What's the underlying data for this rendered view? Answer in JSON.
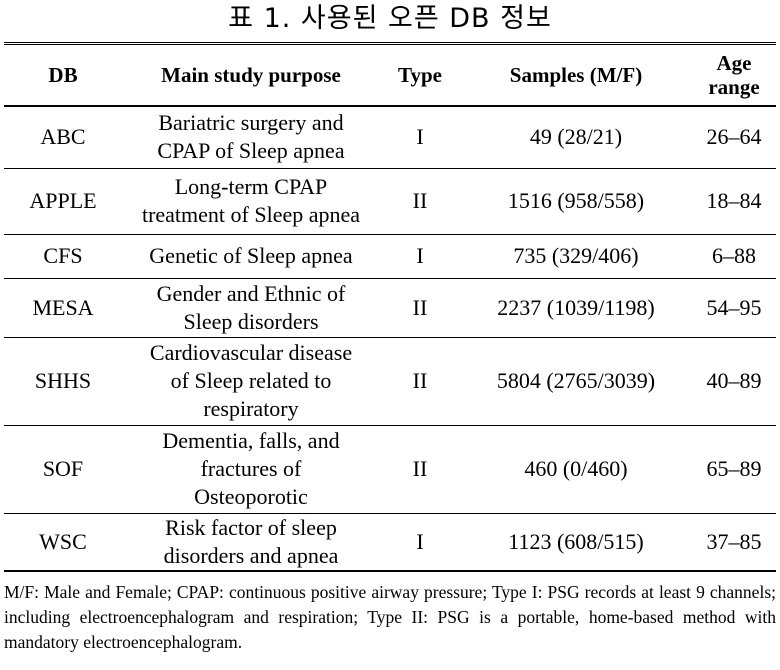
{
  "title": "표 1. 사용된 오픈 DB 정보",
  "table": {
    "headers": {
      "db": "DB",
      "purpose": "Main study purpose",
      "type": "Type",
      "samples": "Samples (M/F)",
      "age_line1": "Age",
      "age_line2": "range"
    },
    "rows": [
      {
        "db": "ABC",
        "purpose": [
          "Bariatric surgery and",
          "CPAP of Sleep apnea"
        ],
        "type": "I",
        "samples": "49 (28/21)",
        "age": "26–64"
      },
      {
        "db": "APPLE",
        "purpose": [
          "Long-term CPAP",
          "treatment of Sleep apnea"
        ],
        "type": "II",
        "samples": "1516 (958/558)",
        "age": "18–84"
      },
      {
        "db": "CFS",
        "purpose": [
          "Genetic of Sleep apnea"
        ],
        "type": "I",
        "samples": "735 (329/406)",
        "age": "6–88"
      },
      {
        "db": "MESA",
        "purpose": [
          "Gender and Ethnic of",
          "Sleep disorders"
        ],
        "type": "II",
        "samples": "2237 (1039/1198)",
        "age": "54–95"
      },
      {
        "db": "SHHS",
        "purpose": [
          "Cardiovascular disease",
          "of Sleep related to",
          "respiratory"
        ],
        "type": "II",
        "samples": "5804 (2765/3039)",
        "age": "40–89"
      },
      {
        "db": "SOF",
        "purpose": [
          "Dementia, falls, and",
          "fractures of",
          "Osteoporotic"
        ],
        "type": "II",
        "samples": "460 (0/460)",
        "age": "65–89"
      },
      {
        "db": "WSC",
        "purpose": [
          "Risk factor of sleep",
          "disorders and apnea"
        ],
        "type": "I",
        "samples": "1123 (608/515)",
        "age": "37–85"
      }
    ]
  },
  "footnote": "M/F: Male and Female; CPAP: continuous positive airway pressure; Type I: PSG records at least 9 channels; including electroencephalogram and respiration; Type II: PSG is a portable, home-based method with mandatory electroencephalogram."
}
